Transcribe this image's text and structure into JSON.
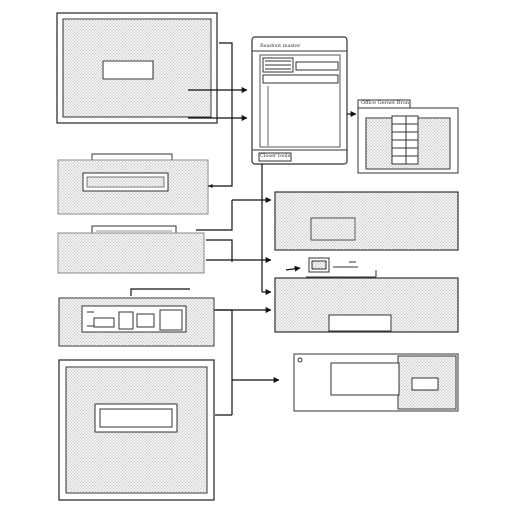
{
  "palette": {
    "background": "#ffffff",
    "stroke": "#333333",
    "hatch": "#9a9a9a",
    "hatch_bg": "#f4f4f4"
  },
  "labels": {
    "main_window_title": "Readout master",
    "main_window_footer": "Closer tools",
    "dialog_title": "Office Gernet Bronnet"
  }
}
